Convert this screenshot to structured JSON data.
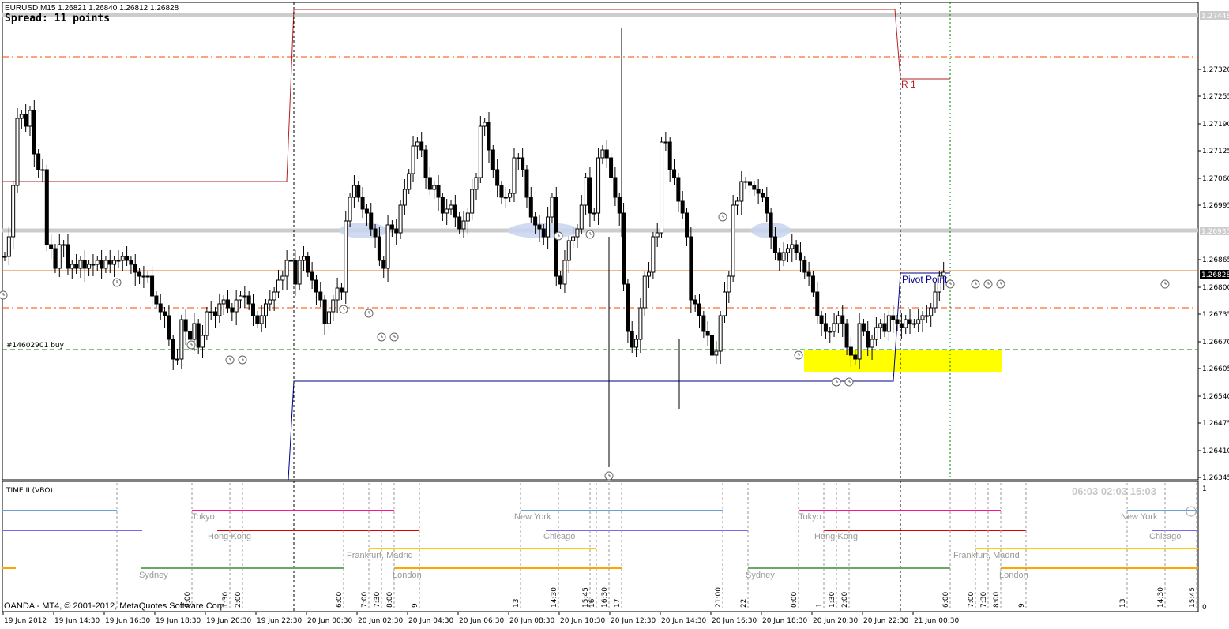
{
  "header": {
    "symbol_line": "EURUSD,M15  1.26821 1.26840 1.26812 1.26828",
    "spread": "Spread: 11 points"
  },
  "annotations": {
    "r1": "R 1",
    "pivot": "Pivot Point",
    "order": "#14602901 buy"
  },
  "price_axis": {
    "labels": [
      "1.27320",
      "1.27255",
      "1.27190",
      "1.27125",
      "1.27060",
      "1.26995",
      "1.26865",
      "1.26800",
      "1.26735",
      "1.26670",
      "1.26605",
      "1.26540",
      "1.26475",
      "1.26410",
      "1.26345"
    ],
    "tags": [
      "1.27448",
      "1.26935",
      "1.26828"
    ]
  },
  "indicator": {
    "title": "TIME II (VBO)",
    "clocks": "06:03   02:03   15:03",
    "scale_top": "1",
    "scale_bottom": "0",
    "cities": [
      "Tokyo",
      "Hong Kong",
      "New York",
      "Chicago",
      "Frankfurt, Madrid",
      "London",
      "Sydney",
      "Tokyo",
      "Hong Kong",
      "New York",
      "Chicago",
      "Frankfurt, Madrid",
      "London",
      "Sydney"
    ],
    "hour_marks": [
      "0:00",
      "6:00",
      "7:00",
      "7:30",
      "8:00",
      "9",
      "13",
      "14:30",
      "15:45",
      "16",
      "16:30",
      "17",
      "21:00",
      "22",
      "0:00",
      "1",
      "1:30",
      "2:00",
      "6:00",
      "7:00",
      "7:30",
      "8:00",
      "9",
      "13",
      "14:30",
      "15:45",
      "1:30",
      "2:00"
    ]
  },
  "time_axis": {
    "labels": [
      "19 Jun 2012",
      "19 Jun 14:30",
      "19 Jun 16:30",
      "19 Jun 18:30",
      "19 Jun 20:30",
      "19 Jun 22:30",
      "20 Jun 00:30",
      "20 Jun 02:30",
      "20 Jun 04:30",
      "20 Jun 06:30",
      "20 Jun 08:30",
      "20 Jun 10:30",
      "20 Jun 12:30",
      "20 Jun 14:30",
      "20 Jun 16:30",
      "20 Jun 18:30",
      "20 Jun 20:30",
      "20 Jun 22:30",
      "21 Jun 00:30"
    ]
  },
  "copyright": "OANDA - MT4, © 2001-2012, MetaQuotes Software Corp.",
  "colors": {
    "resistance": "#b22222",
    "pivot": "#00008b",
    "dash_orange": "#ff4500",
    "buy_line": "#008000",
    "zone": "#ffff00",
    "tokyo": "#ff1493",
    "hongkong": "#dd0000",
    "newyork": "#6a9fd8",
    "chicago": "#7b68ee",
    "frankfurt": "#ffcc00",
    "london": "#ffa500",
    "sydney": "#66aa66"
  }
}
